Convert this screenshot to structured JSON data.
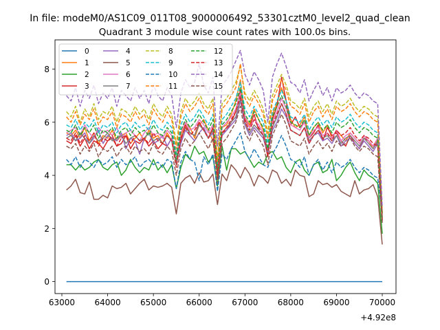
{
  "chart_data": {
    "type": "line",
    "suptitle": "In file: modeM0/AS1C09_011T08_9000006492_53301cztM0_level2_quad_clean",
    "title": "Quadrant 3 module wise count rates with 100.0s bins.",
    "xlabel": "",
    "ylabel": "",
    "offset_text": "+4.92e8",
    "xlim": [
      62850,
      70300
    ],
    "ylim": [
      -0.45,
      9.1
    ],
    "xticks": [
      63000,
      64000,
      65000,
      66000,
      67000,
      68000,
      69000,
      70000
    ],
    "xtick_labels": [
      "63000",
      "64000",
      "65000",
      "66000",
      "67000",
      "68000",
      "69000",
      "70000"
    ],
    "yticks": [
      0,
      2,
      4,
      6,
      8
    ],
    "ytick_labels": [
      "0",
      "2",
      "4",
      "6",
      "8"
    ],
    "legend": {
      "location": "upper-left",
      "ncol": 4
    },
    "x_start": 63100,
    "x_step": 100,
    "series": [
      {
        "name": "0",
        "color": "#1f77b4",
        "dash": "solid",
        "values": [
          0,
          0,
          0,
          0,
          0,
          0,
          0,
          0,
          0,
          0,
          0,
          0,
          0,
          0,
          0,
          0,
          0,
          0,
          0,
          0,
          0,
          0,
          0,
          0,
          0,
          0,
          0,
          0,
          0,
          0,
          0,
          0,
          0,
          0,
          0,
          0,
          0,
          0,
          0,
          0,
          0,
          0,
          0,
          0,
          0,
          0,
          0,
          0,
          0,
          0,
          0,
          0,
          0,
          0,
          0,
          0,
          0,
          0,
          0,
          0,
          0,
          0,
          0,
          0,
          0,
          0,
          0,
          0,
          0,
          0
        ]
      },
      {
        "name": "1",
        "color": "#ff7f0e",
        "dash": "solid",
        "values": [
          5.6,
          5.5,
          5.7,
          5.4,
          5.8,
          5.3,
          5.6,
          5.2,
          5.5,
          5.4,
          5.7,
          5.3,
          5.5,
          5.6,
          5.2,
          5.4,
          5.6,
          5.3,
          5.7,
          5.4,
          5.5,
          5.2,
          5.6,
          5.3,
          4.8,
          5.5,
          6.0,
          5.8,
          5.4,
          5.9,
          6.1,
          5.7,
          5.3,
          4.1,
          5.8,
          5.9,
          6.3,
          6.8,
          7.6,
          6.2,
          5.9,
          6.5,
          6.1,
          5.7,
          4.9,
          6.3,
          6.7,
          7.3,
          6.8,
          6.1,
          5.8,
          5.9,
          6.2,
          5.5,
          5.8,
          6.0,
          5.6,
          5.9,
          5.4,
          5.7,
          5.5,
          5.3,
          5.6,
          5.4,
          5.2,
          5.5,
          5.3,
          5.0,
          5.4,
          2.5
        ]
      },
      {
        "name": "2",
        "color": "#2ca02c",
        "dash": "solid",
        "values": [
          4.4,
          4.4,
          4.2,
          4.4,
          4.2,
          4.3,
          4.5,
          4.6,
          4.3,
          4.2,
          4.4,
          4.5,
          4.0,
          4.2,
          4.6,
          4.3,
          4.1,
          4.3,
          4.2,
          4.6,
          4.2,
          4.4,
          4.1,
          4.4,
          3.5,
          4.3,
          4.8,
          4.6,
          5.1,
          4.8,
          4.9,
          4.5,
          4.7,
          3.6,
          5.1,
          4.2,
          5.0,
          5.0,
          4.8,
          4.9,
          4.6,
          4.3,
          4.5,
          4.4,
          4.8,
          4.9,
          4.6,
          4.7,
          4.3,
          4.1,
          4.5,
          4.6,
          4.2,
          4.0,
          4.4,
          4.5,
          4.1,
          4.2,
          4.6,
          3.8,
          4.0,
          4.3,
          4.5,
          4.1,
          3.8,
          4.2,
          4.0,
          3.9,
          3.7,
          1.8
        ]
      },
      {
        "name": "3",
        "color": "#d62728",
        "dash": "solid",
        "values": [
          5.3,
          5.2,
          5.5,
          5.1,
          5.4,
          5.0,
          5.3,
          5.2,
          5.0,
          5.3,
          5.4,
          5.1,
          5.2,
          5.5,
          5.0,
          5.3,
          5.2,
          5.4,
          5.1,
          5.3,
          5.0,
          5.2,
          5.1,
          5.4,
          4.5,
          5.3,
          5.9,
          5.6,
          5.5,
          6.0,
          5.7,
          5.4,
          5.8,
          3.9,
          5.6,
          5.7,
          6.0,
          6.4,
          7.2,
          6.1,
          5.8,
          6.3,
          5.7,
          5.5,
          4.7,
          6.1,
          6.6,
          7.7,
          6.8,
          5.9,
          6.2,
          5.8,
          6.0,
          5.4,
          5.6,
          5.9,
          5.3,
          5.8,
          5.5,
          5.6,
          5.3,
          5.1,
          5.5,
          5.2,
          5.0,
          5.4,
          5.3,
          5.1,
          5.2,
          2.6
        ]
      },
      {
        "name": "4",
        "color": "#9467bd",
        "dash": "solid",
        "values": [
          5.5,
          5.6,
          5.3,
          5.4,
          5.6,
          5.2,
          5.4,
          5.7,
          5.2,
          5.5,
          5.4,
          5.3,
          5.6,
          5.0,
          5.4,
          5.3,
          4.8,
          5.4,
          5.6,
          5.2,
          5.3,
          5.5,
          5.1,
          5.4,
          4.4,
          5.2,
          5.7,
          5.5,
          5.3,
          5.6,
          5.8,
          5.4,
          5.6,
          4.0,
          5.5,
          5.7,
          5.9,
          6.1,
          6.8,
          5.9,
          5.5,
          5.8,
          5.6,
          5.4,
          4.8,
          5.7,
          6.0,
          6.5,
          6.2,
          5.7,
          5.6,
          5.5,
          5.8,
          5.2,
          5.5,
          5.6,
          5.3,
          5.4,
          5.2,
          5.5,
          5.1,
          5.3,
          5.4,
          5.2,
          5.0,
          5.3,
          5.1,
          4.9,
          5.2,
          2.3
        ]
      },
      {
        "name": "5",
        "color": "#8c564b",
        "dash": "solid",
        "values": [
          3.45,
          3.6,
          3.85,
          3.35,
          3.3,
          3.75,
          3.1,
          3.1,
          3.25,
          3.15,
          3.6,
          3.5,
          3.55,
          3.7,
          3.3,
          3.5,
          3.7,
          3.85,
          3.45,
          3.6,
          3.55,
          3.6,
          3.7,
          3.55,
          2.55,
          3.7,
          3.9,
          4.0,
          3.7,
          4.1,
          3.75,
          3.8,
          4.05,
          2.9,
          4.05,
          3.8,
          4.4,
          4.2,
          3.9,
          4.3,
          4.05,
          3.6,
          4.0,
          3.9,
          3.7,
          4.2,
          4.1,
          3.7,
          3.85,
          3.6,
          4.2,
          4.0,
          3.95,
          3.2,
          3.3,
          3.8,
          3.65,
          3.7,
          3.55,
          3.65,
          3.4,
          3.3,
          3.2,
          3.8,
          3.3,
          3.45,
          3.5,
          3.65,
          3.2,
          1.4
        ]
      },
      {
        "name": "6",
        "color": "#e377c2",
        "dash": "solid",
        "values": [
          5.6,
          5.7,
          5.8,
          5.5,
          5.9,
          5.6,
          5.4,
          5.8,
          5.6,
          5.7,
          5.5,
          5.8,
          5.4,
          5.6,
          5.7,
          5.5,
          5.3,
          5.6,
          5.8,
          5.5,
          5.6,
          5.4,
          5.7,
          5.5,
          4.6,
          5.6,
          6.0,
          5.7,
          5.8,
          6.1,
          5.9,
          5.6,
          5.9,
          4.2,
          5.8,
          6.0,
          6.2,
          6.5,
          7.1,
          6.2,
          5.8,
          6.1,
          5.9,
          5.6,
          5.0,
          6.0,
          6.4,
          6.9,
          6.5,
          5.9,
          5.8,
          5.7,
          6.0,
          5.4,
          5.7,
          5.8,
          5.5,
          5.6,
          5.4,
          5.7,
          5.3,
          5.5,
          5.6,
          5.4,
          5.2,
          5.5,
          5.3,
          5.1,
          5.4,
          2.4
        ]
      },
      {
        "name": "7",
        "color": "#7f7f7f",
        "dash": "solid",
        "values": [
          5.4,
          5.5,
          5.3,
          5.6,
          5.4,
          5.2,
          5.5,
          5.3,
          5.4,
          5.6,
          5.3,
          5.4,
          5.5,
          5.2,
          5.4,
          5.5,
          5.3,
          5.4,
          5.6,
          5.3,
          5.4,
          5.2,
          5.5,
          5.3,
          4.4,
          5.4,
          5.8,
          5.6,
          5.5,
          5.9,
          5.7,
          5.4,
          5.7,
          4.0,
          5.6,
          5.8,
          6.0,
          6.2,
          6.9,
          6.0,
          5.6,
          5.9,
          5.7,
          5.5,
          4.9,
          5.8,
          6.2,
          6.7,
          6.3,
          5.7,
          5.6,
          5.5,
          5.8,
          5.3,
          5.5,
          5.7,
          5.4,
          5.5,
          5.3,
          5.5,
          5.2,
          5.4,
          5.5,
          5.3,
          5.1,
          5.4,
          5.2,
          5.0,
          5.3,
          2.3
        ]
      },
      {
        "name": "8",
        "color": "#bcbd22",
        "dash": "dashed",
        "values": [
          6.4,
          6.2,
          6.6,
          6.0,
          6.5,
          6.2,
          6.7,
          6.1,
          6.4,
          6.3,
          6.6,
          6.0,
          6.5,
          6.4,
          6.2,
          6.6,
          6.3,
          6.5,
          6.1,
          6.7,
          6.4,
          6.2,
          6.6,
          6.3,
          5.2,
          6.4,
          6.9,
          6.6,
          6.8,
          7.1,
          6.7,
          6.5,
          6.9,
          4.6,
          6.7,
          6.9,
          7.2,
          7.5,
          8.1,
          7.1,
          6.8,
          7.2,
          6.9,
          6.5,
          5.6,
          7.0,
          7.4,
          7.8,
          7.4,
          6.8,
          6.7,
          6.5,
          6.9,
          6.2,
          6.6,
          6.8,
          6.4,
          6.7,
          6.3,
          6.8,
          6.6,
          6.7,
          6.9,
          6.6,
          6.4,
          6.6,
          6.5,
          6.3,
          6.2,
          2.6
        ]
      },
      {
        "name": "9",
        "color": "#17becf",
        "dash": "dashed",
        "values": [
          5.9,
          5.8,
          6.1,
          5.7,
          6.0,
          5.8,
          6.1,
          5.6,
          5.9,
          5.8,
          6.0,
          5.6,
          5.9,
          6.0,
          5.7,
          6.0,
          5.8,
          5.9,
          5.7,
          6.1,
          5.8,
          5.7,
          6.0,
          5.8,
          4.8,
          5.9,
          6.3,
          6.0,
          6.2,
          6.5,
          6.2,
          5.9,
          6.3,
          4.4,
          6.1,
          6.3,
          6.6,
          6.9,
          7.5,
          6.5,
          6.2,
          6.6,
          6.3,
          6.0,
          5.2,
          6.4,
          6.8,
          7.2,
          6.8,
          6.2,
          6.1,
          6.0,
          6.3,
          5.7,
          6.0,
          6.2,
          5.9,
          6.1,
          5.8,
          6.2,
          6.0,
          6.1,
          6.3,
          6.0,
          5.8,
          6.0,
          5.9,
          5.7,
          5.6,
          2.5
        ]
      },
      {
        "name": "10",
        "color": "#1f77b4",
        "dash": "dashed",
        "values": [
          4.6,
          4.4,
          4.7,
          4.3,
          4.6,
          4.5,
          4.3,
          4.6,
          4.4,
          4.5,
          4.7,
          4.3,
          4.6,
          4.4,
          4.5,
          4.7,
          4.3,
          4.5,
          4.6,
          4.4,
          4.5,
          4.3,
          4.6,
          4.5,
          3.5,
          4.5,
          4.9,
          4.6,
          4.5,
          3.8,
          4.7,
          4.4,
          4.8,
          3.4,
          4.8,
          4.6,
          5.0,
          5.3,
          5.6,
          4.9,
          4.6,
          5.0,
          4.7,
          4.4,
          4.3,
          4.8,
          5.1,
          5.5,
          5.1,
          4.6,
          4.5,
          4.3,
          4.7,
          4.0,
          4.4,
          4.6,
          4.2,
          4.5,
          4.1,
          4.5,
          4.3,
          4.4,
          4.6,
          4.3,
          4.1,
          4.3,
          4.2,
          4.0,
          3.9,
          2.6
        ]
      },
      {
        "name": "11",
        "color": "#ff7f0e",
        "dash": "dashed",
        "values": [
          6.2,
          6.0,
          6.4,
          5.9,
          6.3,
          6.1,
          6.5,
          5.9,
          6.2,
          6.1,
          6.4,
          5.8,
          6.3,
          6.2,
          6.0,
          6.4,
          6.1,
          6.3,
          5.9,
          6.5,
          6.2,
          6.0,
          6.4,
          6.1,
          5.0,
          6.2,
          6.7,
          6.4,
          6.6,
          6.9,
          6.5,
          6.3,
          6.7,
          4.5,
          6.5,
          6.7,
          7.0,
          7.3,
          8.2,
          6.9,
          6.6,
          7.0,
          6.7,
          6.3,
          5.4,
          6.8,
          7.2,
          7.6,
          7.2,
          6.6,
          6.5,
          6.3,
          6.7,
          6.0,
          6.4,
          6.6,
          6.2,
          6.5,
          6.1,
          6.6,
          6.4,
          6.5,
          6.7,
          6.4,
          6.2,
          6.4,
          6.3,
          6.1,
          6.0,
          2.6
        ]
      },
      {
        "name": "12",
        "color": "#2ca02c",
        "dash": "dashed",
        "values": [
          5.7,
          5.6,
          5.9,
          5.5,
          5.8,
          5.6,
          5.9,
          5.4,
          5.7,
          5.6,
          5.8,
          5.4,
          5.7,
          5.8,
          5.5,
          5.8,
          5.6,
          5.7,
          5.5,
          5.9,
          5.6,
          5.5,
          5.8,
          5.6,
          4.6,
          5.7,
          6.1,
          5.8,
          6.0,
          6.3,
          6.0,
          5.7,
          6.1,
          4.2,
          5.9,
          6.1,
          6.4,
          6.7,
          7.3,
          6.3,
          6.0,
          6.4,
          6.1,
          5.8,
          5.0,
          6.2,
          6.6,
          7.0,
          6.6,
          6.0,
          5.9,
          5.8,
          6.1,
          5.5,
          5.8,
          6.0,
          5.7,
          5.9,
          5.6,
          6.0,
          5.8,
          5.9,
          6.1,
          5.8,
          5.6,
          5.8,
          5.7,
          5.5,
          5.4,
          2.4
        ]
      },
      {
        "name": "13",
        "color": "#d62728",
        "dash": "dashed",
        "values": [
          5.4,
          5.3,
          5.6,
          5.2,
          5.5,
          5.3,
          5.6,
          5.1,
          5.4,
          5.3,
          5.5,
          5.1,
          5.4,
          5.5,
          5.2,
          5.5,
          5.3,
          5.4,
          5.2,
          5.6,
          5.3,
          5.2,
          5.5,
          5.3,
          4.3,
          5.4,
          5.8,
          5.5,
          5.7,
          6.0,
          5.7,
          5.4,
          5.8,
          4.0,
          5.6,
          5.8,
          6.1,
          6.4,
          7.0,
          6.0,
          5.7,
          6.1,
          5.8,
          5.5,
          4.8,
          5.9,
          6.3,
          6.7,
          6.3,
          5.7,
          5.6,
          5.5,
          5.8,
          5.2,
          5.5,
          5.7,
          5.4,
          5.6,
          5.3,
          5.7,
          5.5,
          5.6,
          5.8,
          5.5,
          5.3,
          5.5,
          5.4,
          5.2,
          5.1,
          2.3
        ]
      },
      {
        "name": "14",
        "color": "#9467bd",
        "dash": "dashed",
        "values": [
          7.0,
          6.8,
          7.3,
          6.6,
          7.2,
          6.9,
          7.4,
          6.7,
          7.1,
          6.9,
          7.3,
          6.6,
          7.2,
          7.0,
          6.8,
          7.3,
          6.9,
          7.2,
          6.7,
          7.4,
          7.0,
          6.8,
          7.3,
          7.0,
          5.8,
          7.1,
          7.6,
          7.3,
          7.5,
          8.2,
          7.4,
          7.1,
          7.7,
          5.1,
          7.4,
          7.6,
          7.9,
          8.3,
          8.7,
          7.8,
          7.4,
          7.9,
          7.6,
          7.2,
          6.0,
          7.7,
          8.2,
          8.6,
          8.1,
          7.5,
          7.4,
          7.1,
          7.6,
          6.8,
          7.2,
          7.5,
          7.0,
          7.3,
          6.8,
          7.3,
          7.1,
          7.2,
          7.4,
          7.1,
          6.9,
          7.1,
          7.0,
          6.8,
          6.7,
          2.8
        ]
      },
      {
        "name": "15",
        "color": "#8c564b",
        "dash": "dashed",
        "values": [
          5.1,
          5.0,
          5.2,
          4.8,
          5.1,
          4.9,
          5.2,
          4.7,
          5.0,
          4.9,
          5.1,
          4.7,
          5.0,
          5.1,
          4.8,
          5.1,
          4.9,
          5.0,
          4.8,
          5.2,
          4.9,
          4.8,
          5.1,
          4.9,
          4.0,
          5.0,
          5.4,
          5.1,
          5.3,
          5.6,
          5.3,
          5.0,
          5.4,
          3.7,
          5.2,
          5.4,
          5.7,
          6.0,
          6.6,
          5.6,
          5.3,
          5.7,
          5.4,
          5.1,
          4.4,
          5.5,
          5.9,
          6.3,
          5.9,
          5.3,
          5.2,
          5.1,
          5.4,
          4.8,
          5.1,
          5.3,
          5.0,
          5.2,
          4.9,
          5.3,
          5.1,
          5.2,
          5.4,
          5.1,
          4.9,
          5.1,
          5.0,
          4.8,
          4.7,
          2.2
        ]
      }
    ]
  }
}
